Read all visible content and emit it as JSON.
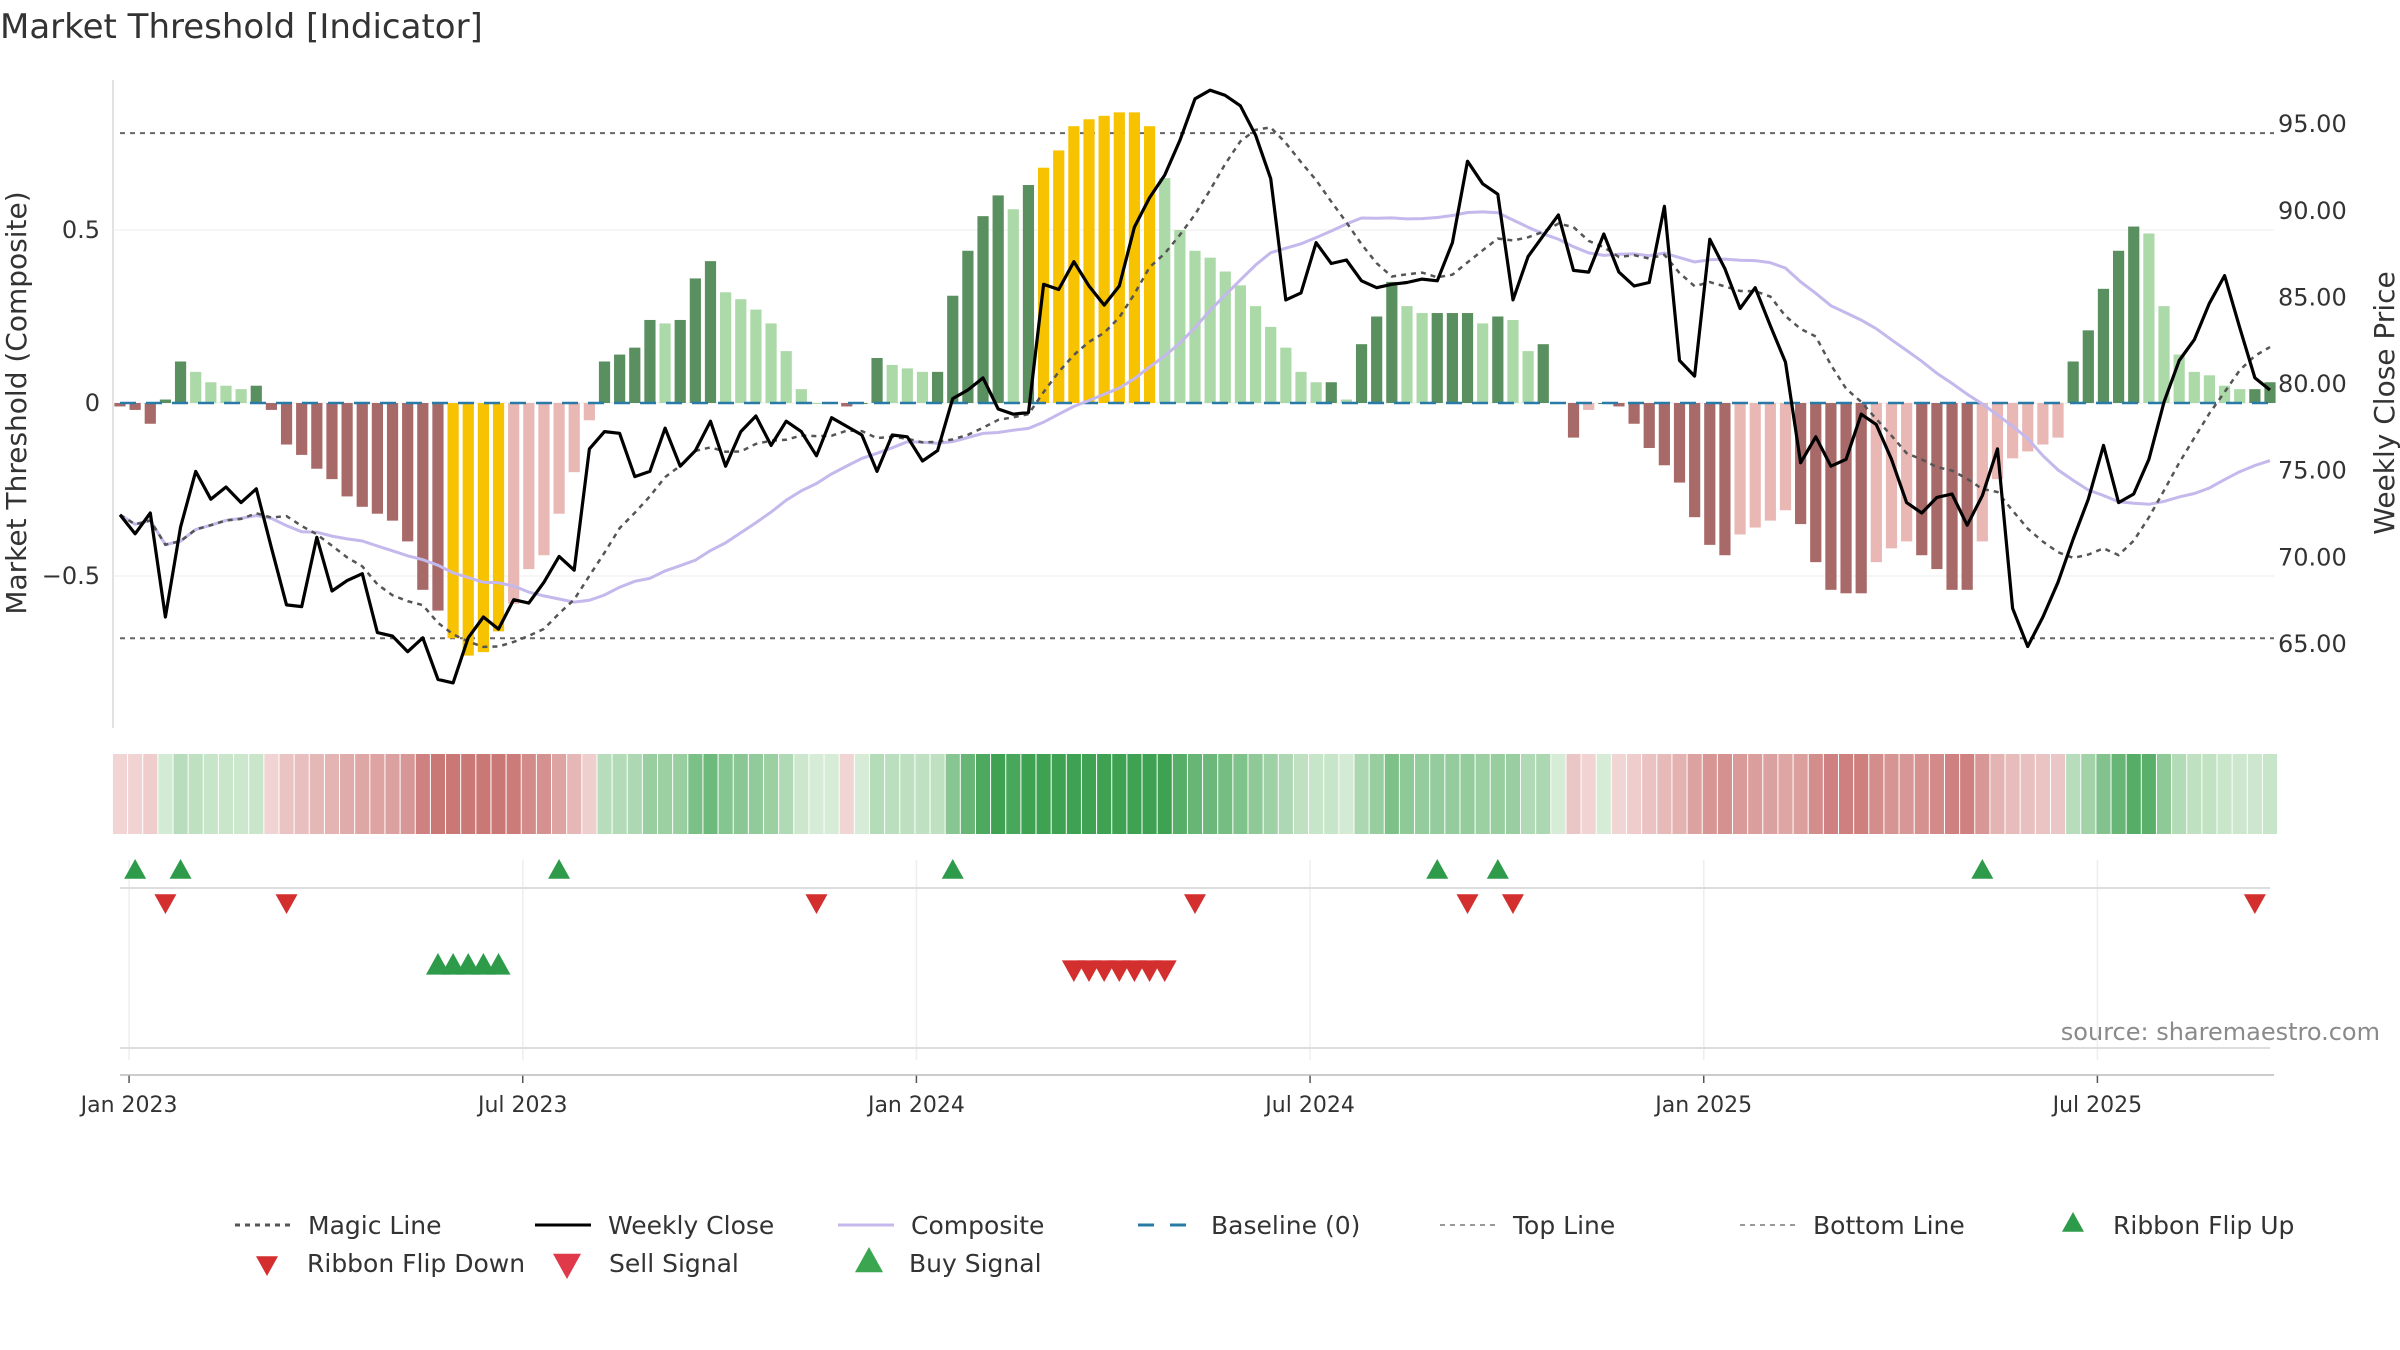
{
  "title": "Market Threshold [Indicator]",
  "source": "source: sharemaestro.com",
  "chart_data": {
    "type": "bar",
    "ylabel_left": "Market Threshold (Composite)",
    "ylabel_right": "Weekly Close Price",
    "ylim_left": [
      -0.93,
      0.95
    ],
    "ylim_right": [
      60.6,
      97.9
    ],
    "left_ticks": [
      "0.5",
      "0",
      "−0.5"
    ],
    "right_ticks": [
      "95.00",
      "90.00",
      "85.00",
      "80.00",
      "75.00",
      "70.00",
      "65.00"
    ],
    "x_ticks": [
      "Jan 2023",
      "Jul 2023",
      "Jan 2024",
      "Jul 2024",
      "Jan 2025",
      "Jul 2025"
    ],
    "top_line": 0.78,
    "bottom_line": -0.68,
    "grid": true,
    "legend_position": "bottom",
    "legend": [
      "Magic Line",
      "Weekly Close",
      "Composite",
      "Baseline (0)",
      "Top Line",
      "Bottom Line",
      "Ribbon Flip Up",
      "Ribbon Flip Down",
      "Sell Signal",
      "Buy Signal"
    ],
    "colors": {
      "strong_up": "#5a8f5f",
      "weak_up": "#acd9a8",
      "strong_down": "#a86a68",
      "weak_down": "#eab8b4",
      "extreme": "#f7c200",
      "close": "#000000",
      "composite": "#c4b8ec",
      "magic": "#555555",
      "baseline": "#2a7aa8",
      "flip_up": "#2e9b4a",
      "flip_down": "#d32f2f"
    },
    "weeks": 143,
    "histogram": [
      -0.01,
      -0.02,
      -0.06,
      0.01,
      0.12,
      0.09,
      0.06,
      0.05,
      0.04,
      0.05,
      -0.02,
      -0.12,
      -0.15,
      -0.19,
      -0.22,
      -0.27,
      -0.3,
      -0.32,
      -0.34,
      -0.4,
      -0.54,
      -0.6,
      -0.68,
      -0.73,
      -0.72,
      -0.66,
      -0.58,
      -0.48,
      -0.44,
      -0.32,
      -0.2,
      -0.05,
      0.12,
      0.14,
      0.16,
      0.24,
      0.23,
      0.24,
      0.36,
      0.41,
      0.32,
      0.3,
      0.27,
      0.23,
      0.15,
      0.04,
      0.0,
      0.0,
      -0.01,
      0.0,
      0.13,
      0.11,
      0.1,
      0.09,
      0.09,
      0.31,
      0.44,
      0.54,
      0.6,
      0.56,
      0.63,
      0.68,
      0.73,
      0.8,
      0.82,
      0.83,
      0.84,
      0.84,
      0.8,
      0.65,
      0.5,
      0.44,
      0.42,
      0.38,
      0.34,
      0.28,
      0.22,
      0.16,
      0.09,
      0.06,
      0.06,
      0.01,
      0.17,
      0.25,
      0.35,
      0.28,
      0.26,
      0.26,
      0.26,
      0.26,
      0.23,
      0.25,
      0.24,
      0.15,
      0.17,
      0.0,
      -0.1,
      -0.02,
      0.0,
      -0.01,
      -0.06,
      -0.13,
      -0.18,
      -0.23,
      -0.33,
      -0.41,
      -0.44,
      -0.38,
      -0.36,
      -0.34,
      -0.31,
      -0.35,
      -0.46,
      -0.54,
      -0.55,
      -0.55,
      -0.46,
      -0.42,
      -0.4,
      -0.44,
      -0.48,
      -0.54,
      -0.54,
      -0.4,
      -0.22,
      -0.16,
      -0.14,
      -0.12,
      -0.1,
      0.12,
      0.21,
      0.33,
      0.44,
      0.51,
      0.49,
      0.28,
      0.14,
      0.09,
      0.08,
      0.05,
      0.04,
      0.04,
      0.06
    ],
    "weekly_close": [
      72.4,
      71.3,
      72.5,
      66.5,
      71.7,
      74.9,
      73.3,
      74.0,
      73.1,
      73.9,
      70.5,
      67.2,
      67.1,
      71.1,
      68.0,
      68.6,
      69.0,
      65.6,
      65.4,
      64.5,
      65.3,
      62.9,
      62.7,
      65.3,
      66.5,
      65.8,
      67.5,
      67.3,
      68.5,
      70.0,
      69.2,
      76.2,
      77.2,
      77.1,
      74.6,
      74.9,
      77.4,
      75.2,
      76.1,
      77.8,
      75.2,
      77.2,
      78.1,
      76.4,
      77.8,
      77.2,
      75.8,
      78.0,
      77.5,
      77.0,
      74.9,
      77.0,
      76.9,
      75.5,
      76.1,
      79.1,
      79.6,
      80.3,
      78.5,
      78.2,
      78.3,
      85.7,
      85.4,
      87.0,
      85.6,
      84.5,
      85.6,
      89.0,
      90.7,
      92.0,
      94.0,
      96.4,
      96.9,
      96.6,
      96.0,
      94.3,
      91.8,
      84.8,
      85.2,
      88.1,
      86.9,
      87.1,
      85.9,
      85.5,
      85.7,
      85.8,
      86.0,
      85.9,
      88.1,
      92.8,
      91.5,
      90.9,
      84.8,
      87.3,
      88.5,
      89.7,
      86.5,
      86.4,
      88.6,
      86.4,
      85.6,
      85.8,
      90.2,
      81.3,
      80.4,
      88.3,
      86.6,
      84.3,
      85.5,
      83.3,
      81.2,
      75.4,
      76.9,
      75.2,
      75.6,
      78.2,
      77.6,
      75.6,
      73.1,
      72.5,
      73.4,
      73.6,
      71.8,
      73.5,
      76.2,
      67.0,
      64.8,
      66.5,
      68.5,
      71.0,
      73.3,
      76.4,
      73.1,
      73.6,
      75.6,
      78.9,
      81.3,
      82.5,
      84.6,
      86.2,
      83.2,
      80.3,
      79.6
    ]
  },
  "ribbon": {
    "segments": "weekly colour strip under the main pane"
  },
  "signals": {
    "flip_up_weeks": [
      1,
      4,
      29,
      55,
      87,
      91,
      123
    ],
    "flip_down_weeks": [
      3,
      11,
      46,
      71,
      89,
      92,
      141
    ],
    "buy_weeks": [
      21,
      22,
      23,
      24,
      25
    ],
    "sell_weeks": [
      63,
      64,
      65,
      66,
      67,
      68,
      69
    ]
  }
}
